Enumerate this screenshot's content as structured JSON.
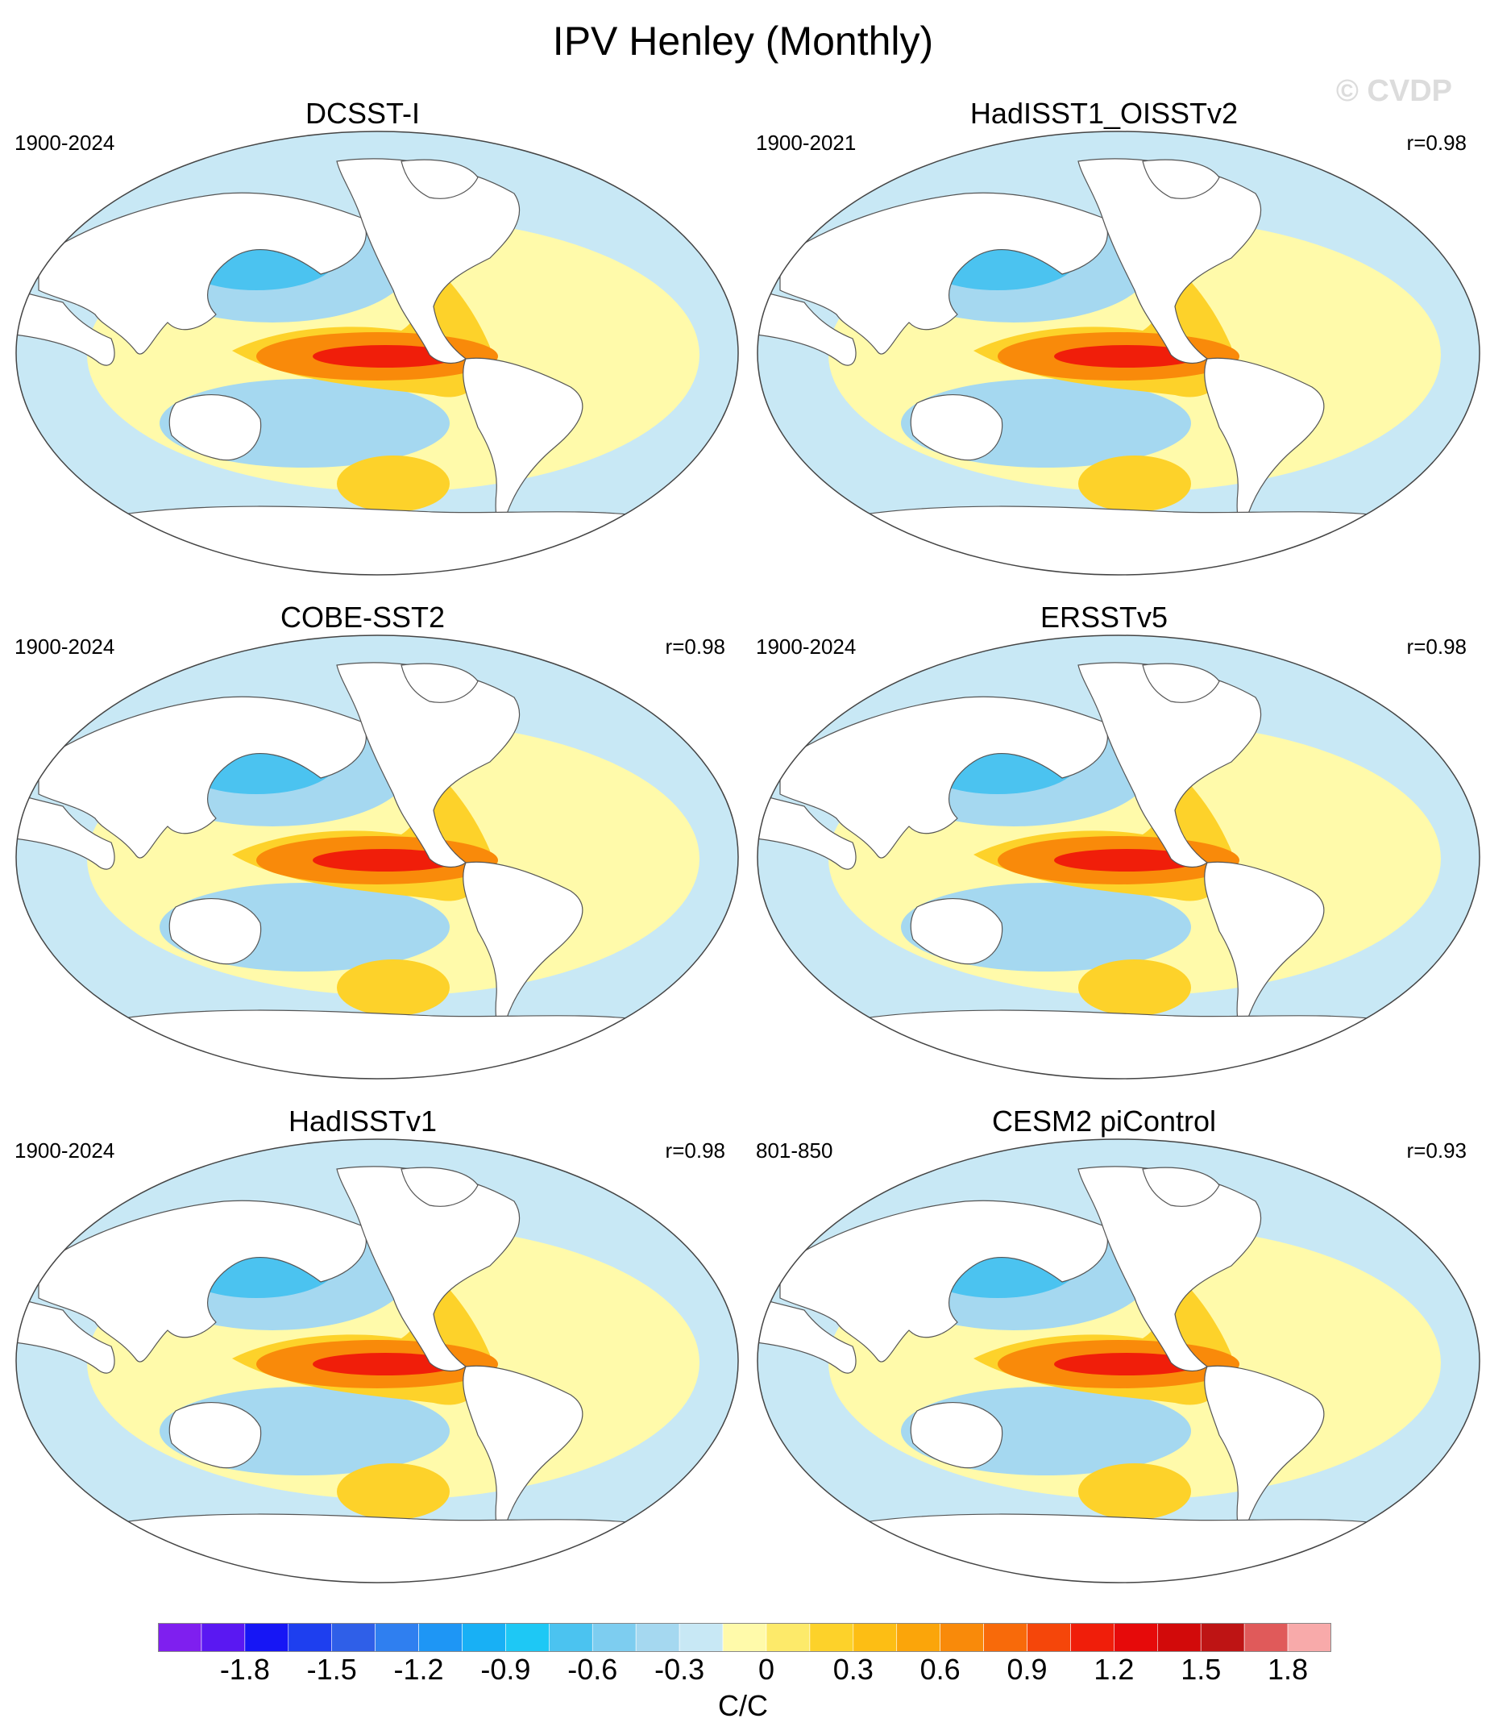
{
  "title": "IPV Henley (Monthly)",
  "watermark": "© CVDP",
  "panels": [
    {
      "name": "DCSST-I",
      "period": "1900-2024",
      "corr": ""
    },
    {
      "name": "HadISST1_OISSTv2",
      "period": "1900-2021",
      "corr": "r=0.98"
    },
    {
      "name": "COBE-SST2",
      "period": "1900-2024",
      "corr": "r=0.98"
    },
    {
      "name": "ERSSTv5",
      "period": "1900-2024",
      "corr": "r=0.98"
    },
    {
      "name": "HadISSTv1",
      "period": "1900-2024",
      "corr": "r=0.98"
    },
    {
      "name": "CESM2 piControl",
      "period": "801-850",
      "corr": "r=0.93"
    }
  ],
  "colorbar": {
    "units": "C/C",
    "labels": [
      "-1.8",
      "-1.5",
      "-1.2",
      "-0.9",
      "-0.6",
      "-0.3",
      "0",
      "0.3",
      "0.6",
      "0.9",
      "1.2",
      "1.5",
      "1.8"
    ],
    "colors": [
      "#7f1fef",
      "#5a18f2",
      "#1616f5",
      "#1e3fef",
      "#2f5fe8",
      "#2f7ff0",
      "#1e96f5",
      "#18b0f5",
      "#1ec8f5",
      "#4bc3f0",
      "#7dcdf0",
      "#a5d8f0",
      "#c8e8f5",
      "#fffaaa",
      "#fdea6a",
      "#fdd22a",
      "#fdbe14",
      "#fba50a",
      "#f98a0a",
      "#f86a0a",
      "#f5460a",
      "#f01e0a",
      "#e60a0a",
      "#d20a0a",
      "#be1414",
      "#e05a5a",
      "#f8aaaa"
    ]
  },
  "pattern_colors": {
    "ocean_neutral": "#c8e8f5",
    "positive_weak": "#fffaaa",
    "positive_mid": "#fdd22a",
    "positive_strong": "#f98a0a",
    "positive_peak": "#f01e0a",
    "negative_weak": "#a5d8f0",
    "negative_mid": "#4bc3f0",
    "land": "#ffffff"
  }
}
